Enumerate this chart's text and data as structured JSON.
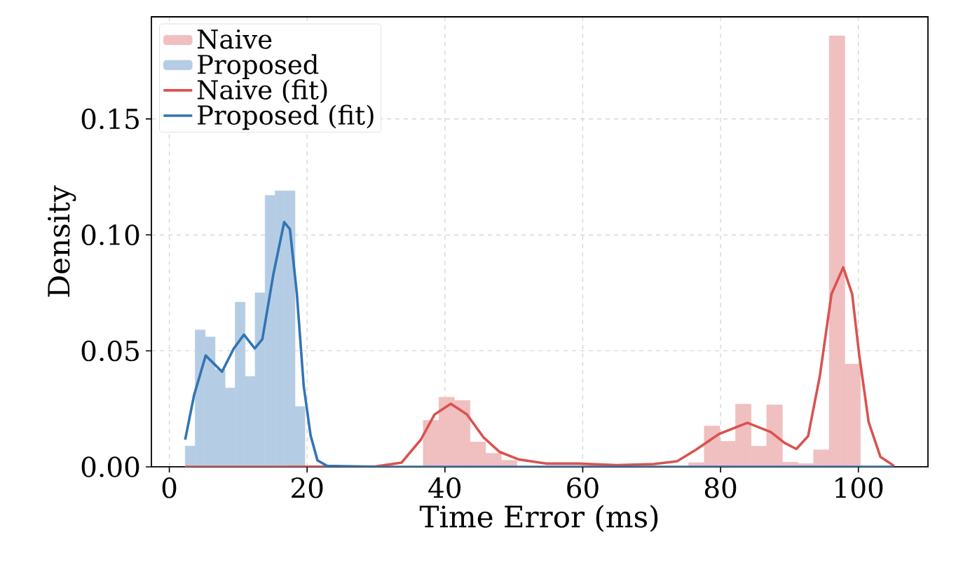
{
  "chart_data": {
    "type": "histogram",
    "xlabel": "Time Error (ms)",
    "ylabel": "Density",
    "xlim": [
      -2.6,
      110.1
    ],
    "ylim": [
      0,
      0.194
    ],
    "xticks": [
      0,
      20,
      40,
      60,
      80,
      100
    ],
    "yticks": [
      {
        "value": 0,
        "label": "0.00"
      },
      {
        "value": 0.05,
        "label": "0.05"
      },
      {
        "value": 0.1,
        "label": "0.10"
      },
      {
        "value": 0.15,
        "label": "0.15"
      }
    ],
    "grid": true,
    "legend": "top left",
    "series": [
      {
        "name": "Naive",
        "type": "histogram",
        "color": "#f0bfc0",
        "bins": [
          36.85,
          39.12,
          41.38,
          43.65,
          45.91,
          48.18,
          50.45,
          52.71,
          54.98,
          57.24,
          59.51,
          61.78,
          64.04,
          66.31,
          68.57,
          70.84,
          73.11,
          75.37,
          77.64,
          79.9,
          82.17,
          84.44,
          86.7,
          88.97,
          91.23,
          93.5,
          95.77,
          98.03,
          100.3
        ],
        "values": [
          0.02,
          0.03,
          0.0286,
          0.0107,
          0.0058,
          0.0028,
          0,
          0,
          0,
          0,
          0,
          0,
          0,
          0,
          0,
          0,
          0,
          0.0018,
          0.0176,
          0.011,
          0.027,
          0.0089,
          0.0267,
          0.002,
          0.0014,
          0.0073,
          0.1858,
          0.0443
        ]
      },
      {
        "name": "Proposed",
        "type": "histogram",
        "color": "#b5cde4",
        "bins": [
          2.3,
          3.75,
          5.2,
          6.65,
          8.1,
          9.55,
          11.0,
          12.45,
          13.9,
          15.35,
          16.8,
          18.25,
          19.7
        ],
        "values": [
          0.009,
          0.059,
          0.056,
          0.042,
          0.034,
          0.071,
          0.039,
          0.075,
          0.117,
          0.119,
          0.119,
          0.026
        ]
      },
      {
        "name": "Naive (fit)",
        "type": "line",
        "color": "#d9534f",
        "x": [
          2.3,
          15,
          30,
          33.7,
          36.5,
          38.5,
          40.85,
          43.2,
          45.6,
          47.95,
          50.7,
          54.7,
          59.5,
          64.9,
          70.3,
          73.7,
          76.4,
          79.8,
          83.9,
          87.3,
          89.3,
          91.0,
          92.7,
          94.4,
          96.1,
          97.8,
          99.1,
          100.1,
          101.5,
          103.2,
          105.2
        ],
        "values": [
          0,
          0,
          0.0002,
          0.0018,
          0.0117,
          0.0226,
          0.0272,
          0.0226,
          0.0127,
          0.0064,
          0.0032,
          0.0014,
          0.0014,
          0.0007,
          0.0012,
          0.0024,
          0.0073,
          0.0142,
          0.019,
          0.015,
          0.0103,
          0.0077,
          0.0132,
          0.039,
          0.0745,
          0.086,
          0.0745,
          0.0488,
          0.0192,
          0.0043,
          0.0004
        ]
      },
      {
        "name": "Proposed (fit)",
        "type": "line",
        "color": "#3274b5",
        "x": [
          2.3,
          3.6,
          5.28,
          6.63,
          7.65,
          9.35,
          10.83,
          12.4,
          13.5,
          15.1,
          16.67,
          17.5,
          18.5,
          19.5,
          20.5,
          21.5,
          22.9,
          30,
          50,
          80,
          105.2
        ],
        "values": [
          0.0117,
          0.031,
          0.048,
          0.044,
          0.041,
          0.051,
          0.057,
          0.051,
          0.055,
          0.083,
          0.1055,
          0.1025,
          0.075,
          0.035,
          0.0136,
          0.0028,
          0.0004,
          0,
          0,
          0,
          0
        ]
      }
    ]
  }
}
